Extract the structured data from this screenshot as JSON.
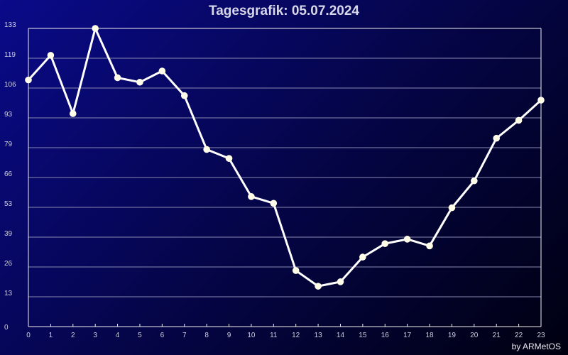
{
  "chart_data": {
    "type": "line",
    "title": "Tagesgrafik: 05.07.2024",
    "xlabel": "",
    "ylabel": "",
    "x": [
      0,
      1,
      2,
      3,
      4,
      5,
      6,
      7,
      8,
      9,
      10,
      11,
      12,
      13,
      14,
      15,
      16,
      17,
      18,
      19,
      20,
      21,
      22,
      23
    ],
    "x_ticks": [
      "0",
      "1",
      "2",
      "3",
      "4",
      "5",
      "6",
      "7",
      "8",
      "9",
      "10",
      "11",
      "12",
      "13",
      "14",
      "15",
      "16",
      "17",
      "18",
      "19",
      "20",
      "21",
      "22",
      "23"
    ],
    "y_ticks": [
      "0",
      "13",
      "26",
      "39",
      "53",
      "66",
      "79",
      "93",
      "106",
      "119",
      "133"
    ],
    "ylim": [
      0,
      133
    ],
    "series": [
      {
        "values": [
          110,
          121,
          95,
          133,
          111,
          109,
          114,
          103,
          79,
          75,
          58,
          55,
          25,
          18,
          20,
          31,
          37,
          39,
          36,
          53,
          65,
          84,
          92,
          101
        ]
      }
    ],
    "grid": true,
    "legend": "none",
    "colors": {
      "line": "#ffffff",
      "marker": "#fffde8",
      "grid": "#8888b0",
      "axis": "#f0f0f0",
      "tick_text": "#d0d0e0"
    }
  },
  "footer_text": "by ARMetOS"
}
